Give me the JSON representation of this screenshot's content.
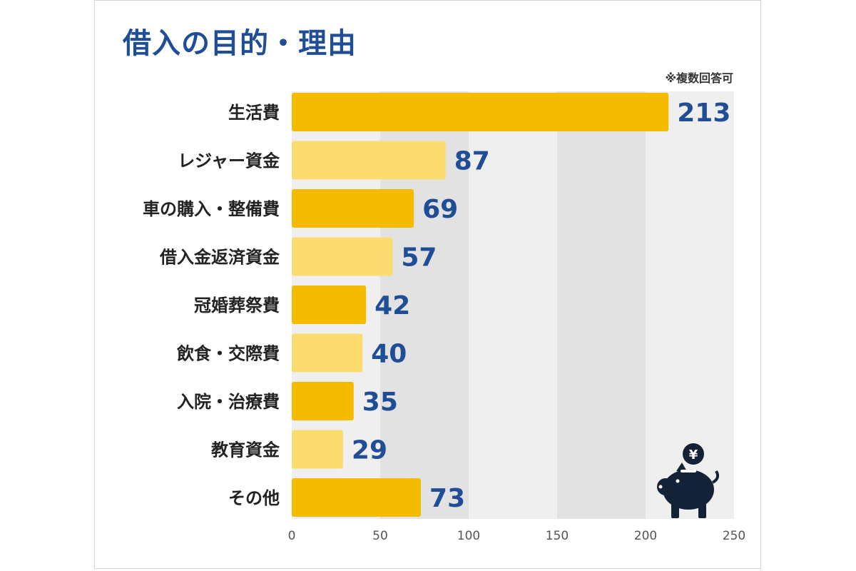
{
  "title": "借入の目的・理由",
  "note": "※複数回答可",
  "icon": "piggy-bank-yen-icon",
  "icon_symbol": "¥",
  "colors": {
    "title": "#1f4e96",
    "value_label": "#1f4e96",
    "bar_dark": "#f5bb00",
    "bar_light": "#fcdc6e",
    "band_light": "#efefef",
    "band_dark": "#e2e2e2",
    "icon": "#142238"
  },
  "chart_data": {
    "type": "bar",
    "orientation": "horizontal",
    "title": "借入の目的・理由",
    "categories": [
      "生活費",
      "レジャー資金",
      "車の購入・整備費",
      "借入金返済資金",
      "冠婚葬祭費",
      "飲食・交際費",
      "入院・治療費",
      "教育資金",
      "その他"
    ],
    "values": [
      213,
      87,
      69,
      57,
      42,
      40,
      35,
      29,
      73
    ],
    "xlim": [
      0,
      250
    ],
    "ticks": [
      "0",
      "50",
      "100",
      "150",
      "200",
      "250"
    ],
    "tick_values": [
      0,
      50,
      100,
      150,
      200,
      250
    ],
    "grid": "alternating vertical bands",
    "note": "※複数回答可"
  }
}
